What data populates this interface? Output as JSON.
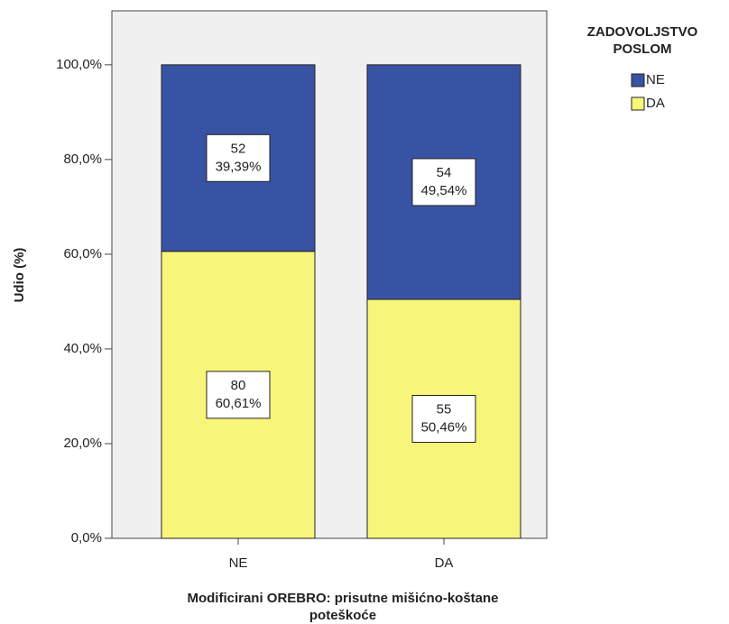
{
  "chart_data": {
    "type": "stacked_bar",
    "xlabel": [
      "Modificirani OREBRO: prisutne mišićno-koštane",
      "poteškoće"
    ],
    "ylabel": "Udio (%)",
    "legend_title": [
      "ZADOVOLJSTVO",
      "POSLOM"
    ],
    "legend": "right",
    "categories": [
      "NE",
      "DA"
    ],
    "series": [
      {
        "name": "NE",
        "color": "#3953a4",
        "values": [
          39.39,
          49.54
        ],
        "value_labels": [
          "39,39%",
          "49,54%"
        ],
        "counts": [
          52,
          54
        ]
      },
      {
        "name": "DA",
        "color": "#f8f67a",
        "values": [
          60.61,
          50.46
        ],
        "value_labels": [
          "60,61%",
          "50,46%"
        ],
        "counts": [
          80,
          55
        ]
      }
    ],
    "ylim": [
      0,
      111.4
    ],
    "yticks": [
      {
        "value": 0,
        "label": "0,0%"
      },
      {
        "value": 20,
        "label": "20,0%"
      },
      {
        "value": 40,
        "label": "40,0%"
      },
      {
        "value": 60,
        "label": "60,0%"
      },
      {
        "value": 80,
        "label": "80,0%"
      },
      {
        "value": 100,
        "label": "100,0%"
      }
    ]
  }
}
